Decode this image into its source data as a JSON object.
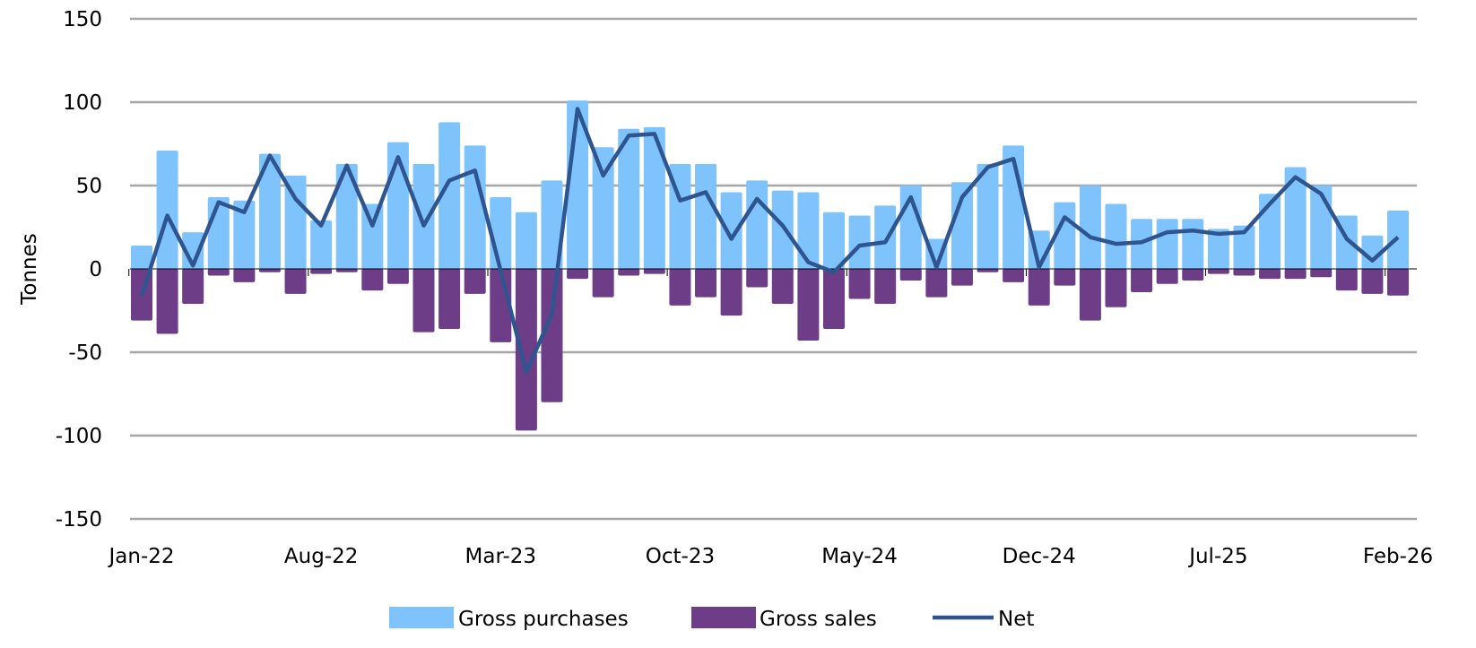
{
  "chart_data": {
    "type": "bar",
    "title": "",
    "xlabel": "",
    "ylabel": "Tonnes",
    "ylim": [
      -150,
      150
    ],
    "yticks": [
      150,
      100,
      50,
      0,
      -50,
      -100,
      -150
    ],
    "grid": true,
    "legend_position": "bottom",
    "categories": [
      "Jan-22",
      "Feb-22",
      "Mar-22",
      "Apr-22",
      "May-22",
      "Jun-22",
      "Jul-22",
      "Aug-22",
      "Sep-22",
      "Oct-22",
      "Nov-22",
      "Dec-22",
      "Jan-23",
      "Feb-23",
      "Mar-23",
      "Apr-23",
      "May-23",
      "Jun-23",
      "Jul-23",
      "Aug-23",
      "Sep-23",
      "Oct-23",
      "Nov-23",
      "Dec-23",
      "Jan-24",
      "Feb-24",
      "Mar-24",
      "Apr-24",
      "May-24",
      "Jun-24",
      "Jul-24",
      "Aug-24",
      "Sep-24",
      "Oct-24",
      "Nov-24",
      "Dec-24",
      "Jan-25",
      "Feb-25",
      "Mar-25",
      "Apr-25",
      "May-25",
      "Jun-25",
      "Jul-25",
      "Aug-25",
      "Sep-25",
      "Oct-25",
      "Nov-25",
      "Dec-25",
      "Jan-26",
      "Feb-26"
    ],
    "xtick_labels": [
      "Jan-22",
      "Aug-22",
      "Mar-23",
      "Oct-23",
      "May-24",
      "Dec-24",
      "Jul-25",
      "Feb-26"
    ],
    "series": [
      {
        "name": "Gross purchases",
        "type": "bar",
        "color": "#7fc3fc",
        "values": [
          14,
          71,
          22,
          43,
          41,
          69,
          56,
          29,
          63,
          39,
          76,
          63,
          88,
          74,
          43,
          34,
          53,
          101,
          73,
          84,
          85,
          63,
          63,
          46,
          53,
          47,
          46,
          34,
          32,
          38,
          50,
          18,
          52,
          63,
          74,
          23,
          40,
          50,
          39,
          30,
          30,
          30,
          24,
          26,
          45,
          61,
          50,
          32,
          20,
          35
        ]
      },
      {
        "name": "Gross sales",
        "type": "bar",
        "color": "#6d3d87",
        "values": [
          -31,
          -39,
          -21,
          -4,
          -8,
          -2,
          -15,
          -3,
          -2,
          -13,
          -9,
          -38,
          -36,
          -15,
          -44,
          -97,
          -80,
          -6,
          -17,
          -4,
          -3,
          -22,
          -17,
          -28,
          -11,
          -21,
          -43,
          -36,
          -18,
          -21,
          -7,
          -17,
          -10,
          -2,
          -8,
          -22,
          -10,
          -31,
          -23,
          -14,
          -9,
          -7,
          -3,
          -4,
          -6,
          -6,
          -5,
          -13,
          -15,
          -16
        ]
      },
      {
        "name": "Net",
        "type": "line",
        "color": "#2f5590",
        "values": [
          -16,
          32,
          2,
          40,
          34,
          68,
          42,
          26,
          62,
          26,
          67,
          26,
          53,
          59,
          -1,
          -62,
          -27,
          96,
          56,
          80,
          81,
          41,
          46,
          18,
          42,
          26,
          4,
          -2,
          14,
          16,
          43,
          1,
          43,
          61,
          66,
          1,
          31,
          19,
          15,
          16,
          22,
          23,
          21,
          22,
          39,
          55,
          45,
          18,
          5,
          19
        ]
      }
    ]
  }
}
